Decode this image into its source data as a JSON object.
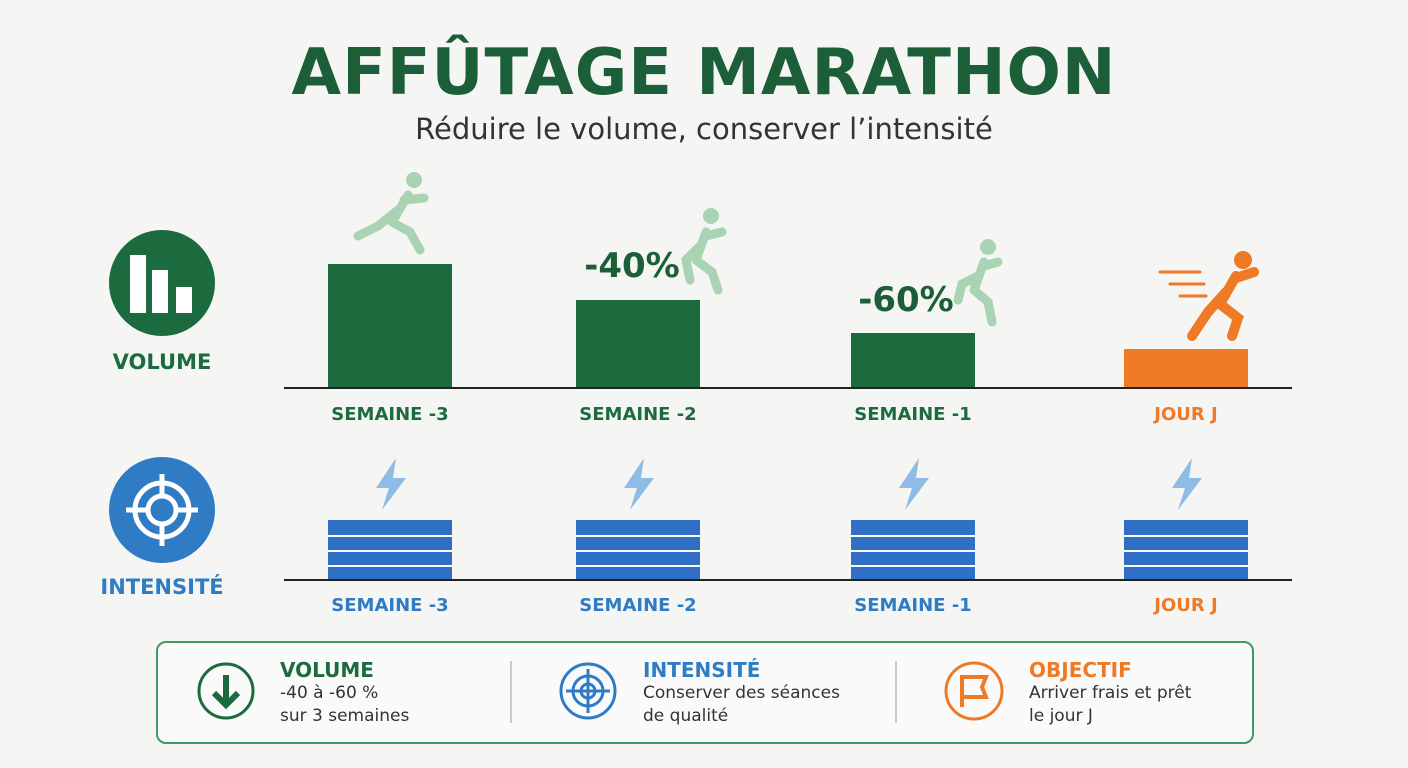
{
  "header": {
    "title": "AFFÛTAGE MARATHON",
    "subtitle": "Réduire le volume, conserver l’intensité"
  },
  "volume": {
    "label": "VOLUME",
    "annotations": [
      "-40%",
      "-60%"
    ],
    "weeks": [
      "SEMAINE -3",
      "SEMAINE -2",
      "SEMAINE -1",
      "JOUR J"
    ]
  },
  "intensity": {
    "label": "INTENSITÉ",
    "weeks": [
      "SEMAINE -3",
      "SEMAINE -2",
      "SEMAINE -1",
      "JOUR J"
    ]
  },
  "summary": [
    {
      "title": "VOLUME",
      "lines": [
        "-40 à -60 %",
        "sur 3 semaines"
      ]
    },
    {
      "title": "INTENSITÉ",
      "lines": [
        "Conserver des séances",
        "de qualité"
      ]
    },
    {
      "title": "OBJECTIF",
      "lines": [
        "Arriver frais et prêt",
        "le jour J"
      ]
    }
  ]
}
